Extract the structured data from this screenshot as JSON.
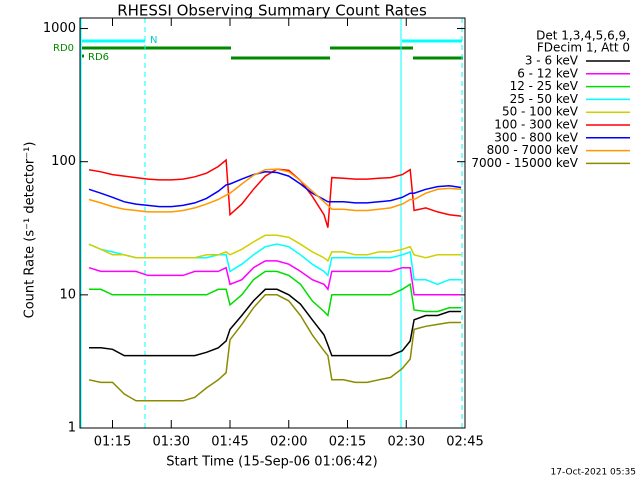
{
  "chart_data": {
    "type": "line",
    "title": "RHESSI Observing Summary Count Rates",
    "x_label": "Start Time (15-Sep-06 01:06:42)",
    "y_label": "Count Rate (s⁻¹ detector⁻¹)",
    "legend_header": [
      "Det 1,3,4,5,6,9,",
      "FDecim 1, Att 0"
    ],
    "flag_labels": [
      "N",
      "RD0",
      "RD6"
    ],
    "footer": "17-Oct-2021 05:35",
    "log_y": true,
    "xlim": [
      "01:06:42",
      "02:45"
    ],
    "xticks": [
      "01:15",
      "01:30",
      "01:45",
      "02:00",
      "02:15",
      "02:30",
      "02:45"
    ],
    "ylim": [
      1,
      1200
    ],
    "yticks": [
      1,
      10,
      100,
      1000
    ],
    "x": [
      "01:09",
      "01:12",
      "01:15",
      "01:18",
      "01:21",
      "01:24",
      "01:27",
      "01:30",
      "01:33",
      "01:36",
      "01:39",
      "01:42",
      "01:44",
      "01:45",
      "01:48",
      "01:51",
      "01:54",
      "01:57",
      "02:00",
      "02:03",
      "02:06",
      "02:09",
      "02:10",
      "02:11",
      "02:14",
      "02:17",
      "02:20",
      "02:23",
      "02:26",
      "02:29",
      "02:31",
      "02:32",
      "02:35",
      "02:38",
      "02:41",
      "02:44"
    ],
    "series": [
      {
        "name": "3 - 6 keV",
        "color": "#000000",
        "values": [
          4,
          4,
          3.9,
          3.5,
          3.5,
          3.5,
          3.5,
          3.5,
          3.5,
          3.5,
          3.7,
          4,
          4.5,
          5.5,
          7,
          9,
          11,
          11,
          10,
          8.5,
          6.5,
          5,
          4.2,
          3.5,
          3.5,
          3.5,
          3.5,
          3.5,
          3.5,
          3.8,
          4.5,
          6.5,
          7,
          7,
          7.5,
          7.5
        ]
      },
      {
        "name": "6 - 12 keV",
        "color": "#ff00ff",
        "values": [
          16,
          15,
          15,
          15,
          15,
          14,
          14,
          14,
          14,
          15,
          15,
          15,
          16,
          12,
          13,
          16,
          18,
          18,
          17,
          15,
          13,
          12,
          11,
          15,
          15,
          15,
          15,
          15,
          15,
          16,
          16,
          10,
          10,
          10,
          10,
          10
        ]
      },
      {
        "name": "12 - 25 keV",
        "color": "#00dd00",
        "values": [
          11,
          11,
          10,
          10,
          10,
          10,
          10,
          10,
          10,
          10,
          10,
          11,
          11,
          8.4,
          10,
          13,
          15,
          15,
          14,
          12,
          9,
          7.5,
          7,
          10,
          10,
          10,
          10,
          10,
          10,
          11,
          12,
          7.7,
          7.5,
          7.5,
          8,
          8
        ]
      },
      {
        "name": "25 - 50 keV",
        "color": "#00ffff",
        "values": [
          24,
          22,
          21,
          20,
          19,
          19,
          19,
          19,
          19,
          19,
          19,
          20,
          20,
          15,
          17,
          20,
          23,
          24,
          23,
          20,
          17,
          15,
          14,
          19,
          19,
          19,
          19,
          19,
          19,
          20,
          21,
          13,
          13,
          12,
          13,
          13
        ]
      },
      {
        "name": "50 - 100 keV",
        "color": "#d0d000",
        "values": [
          24,
          22,
          20,
          20,
          19,
          19,
          19,
          19,
          19,
          19,
          20,
          20,
          21,
          20,
          22,
          25,
          28,
          28,
          27,
          24,
          21,
          19,
          18,
          21,
          21,
          20,
          20,
          21,
          21,
          22,
          23,
          20,
          19,
          20,
          20,
          20
        ]
      },
      {
        "name": "100 - 300 keV",
        "color": "#ff0000",
        "values": [
          87,
          84,
          80,
          78,
          76,
          74,
          73,
          73,
          74,
          77,
          82,
          92,
          103,
          40,
          48,
          62,
          78,
          88,
          86,
          72,
          55,
          40,
          32,
          76,
          75,
          74,
          74,
          75,
          76,
          80,
          87,
          43,
          45,
          42,
          40,
          39
        ]
      },
      {
        "name": "300 - 800 keV",
        "color": "#0000ff",
        "values": [
          62,
          58,
          54,
          50,
          48,
          47,
          46,
          46,
          47,
          49,
          53,
          60,
          67,
          68,
          74,
          80,
          84,
          83,
          78,
          68,
          58,
          52,
          50,
          50,
          50,
          49,
          49,
          50,
          51,
          54,
          58,
          58,
          62,
          65,
          66,
          64
        ]
      },
      {
        "name": "800 - 7000 keV",
        "color": "#ff9900",
        "values": [
          52,
          49,
          46,
          44,
          43,
          42,
          42,
          42,
          43,
          45,
          48,
          52,
          56,
          58,
          68,
          79,
          87,
          88,
          84,
          72,
          60,
          50,
          47,
          44,
          44,
          43,
          43,
          44,
          45,
          48,
          52,
          52,
          58,
          62,
          63,
          62
        ]
      },
      {
        "name": "7000 - 15000 keV",
        "color": "#8b8b00",
        "values": [
          2.3,
          2.2,
          2.2,
          1.8,
          1.6,
          1.6,
          1.6,
          1.6,
          1.6,
          1.7,
          2,
          2.3,
          2.6,
          4.6,
          6,
          8,
          10,
          10,
          9,
          7,
          5,
          3.8,
          3.5,
          2.3,
          2.3,
          2.2,
          2.2,
          2.3,
          2.4,
          2.8,
          3.3,
          5.5,
          5.8,
          6,
          6.2,
          6.2
        ]
      }
    ]
  }
}
